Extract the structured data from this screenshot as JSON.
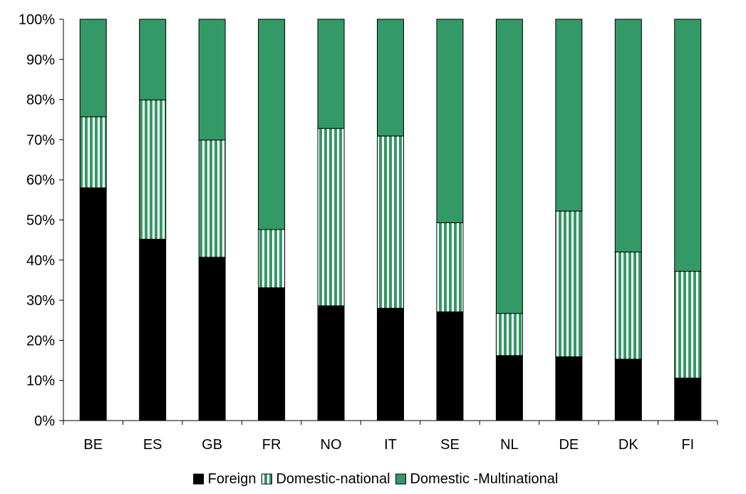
{
  "chart_data": {
    "type": "bar",
    "stacked": true,
    "categories": [
      "BE",
      "ES",
      "GB",
      "FR",
      "NO",
      "IT",
      "SE",
      "NL",
      "DE",
      "DK",
      "FI"
    ],
    "series": [
      {
        "name": "Foreign",
        "color": "#000000",
        "pattern": "solid",
        "values": [
          58,
          45.2,
          40.7,
          33.1,
          28.6,
          28,
          27.1,
          16.2,
          15.9,
          15.3,
          10.6
        ]
      },
      {
        "name": "Domestic-national",
        "color": "#339966",
        "pattern": "vertical-stripes",
        "values": [
          17.7,
          34.7,
          29.2,
          14.5,
          44.2,
          42.9,
          22.2,
          10.5,
          36.3,
          26.7,
          26.6
        ]
      },
      {
        "name": "Domestic -Multinational",
        "color": "#339966",
        "pattern": "solid",
        "values": [
          24.3,
          20.1,
          30.1,
          52.4,
          27.2,
          29.1,
          50.7,
          73.3,
          47.8,
          58,
          62.8
        ]
      }
    ],
    "y_ticks": [
      "0%",
      "10%",
      "20%",
      "30%",
      "40%",
      "50%",
      "60%",
      "70%",
      "80%",
      "90%",
      "100%"
    ],
    "ylim": [
      0,
      100
    ],
    "grid": false,
    "legend": "bottom-center",
    "title": "",
    "xlabel": "",
    "ylabel": ""
  }
}
